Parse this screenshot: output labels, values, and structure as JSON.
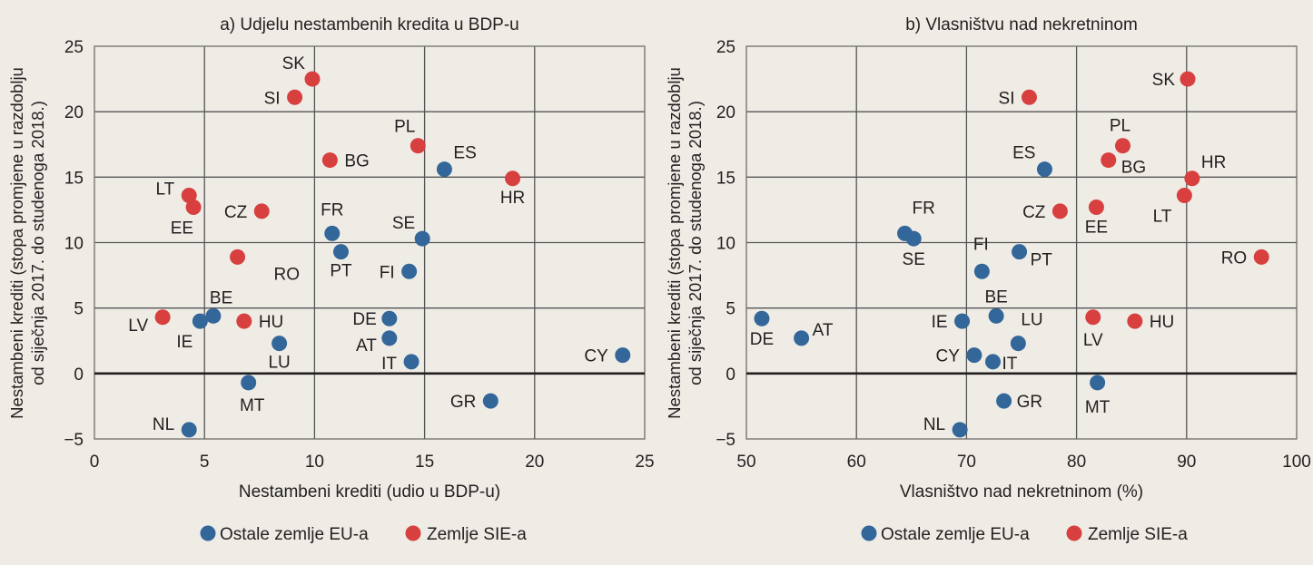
{
  "colors": {
    "background": "#efece6",
    "other_eu": "#336699",
    "cee": "#d7403e"
  },
  "chart_data": [
    {
      "type": "scatter",
      "title": "a) Udjelu nestambenih kredita u BDP-u",
      "xlabel": "Nestambeni krediti (udio u BDP-u)",
      "ylabel_lines": [
        "Nestambeni krediti (stopa promjene u razdoblju",
        "od siječnja 2017. do studenoga 2018.)"
      ],
      "xlim": [
        0,
        25
      ],
      "ylim": [
        -5,
        25
      ],
      "xticks": [
        0,
        5,
        10,
        15,
        20,
        25
      ],
      "yticks": [
        -5,
        0,
        5,
        10,
        15,
        20,
        25
      ],
      "xtick_labels": [
        "0",
        "5",
        "10",
        "15",
        "20",
        "25"
      ],
      "ytick_labels": [
        "−5",
        "0",
        "5",
        "10",
        "15",
        "20",
        "25"
      ],
      "grid": true,
      "legend": {
        "placement": "bottom",
        "entries": [
          {
            "label": "Ostale zemlje EU-a",
            "group": "other_eu"
          },
          {
            "label": "Zemlje SIE-a",
            "group": "cee"
          }
        ]
      },
      "series": [
        {
          "name": "Ostale zemlje EU-a",
          "group": "other_eu",
          "points": [
            {
              "label": "ES",
              "x": 15.9,
              "y": 15.6
            },
            {
              "label": "FR",
              "x": 10.8,
              "y": 10.7
            },
            {
              "label": "SE",
              "x": 14.9,
              "y": 10.3
            },
            {
              "label": "PT",
              "x": 11.2,
              "y": 9.3
            },
            {
              "label": "FI",
              "x": 14.3,
              "y": 7.8
            },
            {
              "label": "BE",
              "x": 5.4,
              "y": 4.4
            },
            {
              "label": "IE",
              "x": 4.8,
              "y": 4.0
            },
            {
              "label": "DE",
              "x": 13.4,
              "y": 4.2
            },
            {
              "label": "AT",
              "x": 13.4,
              "y": 2.7
            },
            {
              "label": "LU",
              "x": 8.4,
              "y": 2.3
            },
            {
              "label": "IT",
              "x": 14.4,
              "y": 0.9
            },
            {
              "label": "CY",
              "x": 24.0,
              "y": 1.4
            },
            {
              "label": "MT",
              "x": 7.0,
              "y": -0.7
            },
            {
              "label": "GR",
              "x": 18.0,
              "y": -2.1
            },
            {
              "label": "NL",
              "x": 4.3,
              "y": -4.3
            }
          ]
        },
        {
          "name": "Zemlje SIE-a",
          "group": "cee",
          "points": [
            {
              "label": "SK",
              "x": 9.9,
              "y": 22.5
            },
            {
              "label": "SI",
              "x": 9.1,
              "y": 21.1
            },
            {
              "label": "PL",
              "x": 14.7,
              "y": 17.4
            },
            {
              "label": "BG",
              "x": 10.7,
              "y": 16.3
            },
            {
              "label": "HR",
              "x": 19.0,
              "y": 14.9
            },
            {
              "label": "LT",
              "x": 4.3,
              "y": 13.6
            },
            {
              "label": "EE",
              "x": 4.5,
              "y": 12.7
            },
            {
              "label": "CZ",
              "x": 7.6,
              "y": 12.4
            },
            {
              "label": "RO",
              "x": 6.5,
              "y": 8.9
            },
            {
              "label": "LV",
              "x": 3.1,
              "y": 4.3
            },
            {
              "label": "HU",
              "x": 6.8,
              "y": 4.0
            }
          ]
        }
      ]
    },
    {
      "type": "scatter",
      "title": "b) Vlasništvu nad nekretninom",
      "xlabel": "Vlasništvo nad nekretninom (%)",
      "ylabel_lines": [
        "Nestambeni krediti (stopa promjene u razdoblju",
        "od siječnja 2017. do studenoga 2018.)"
      ],
      "xlim": [
        50,
        100
      ],
      "ylim": [
        -5,
        25
      ],
      "xticks": [
        50,
        60,
        70,
        80,
        90,
        100
      ],
      "yticks": [
        -5,
        0,
        5,
        10,
        15,
        20,
        25
      ],
      "xtick_labels": [
        "50",
        "60",
        "70",
        "80",
        "90",
        "100"
      ],
      "ytick_labels": [
        "−5",
        "0",
        "5",
        "10",
        "15",
        "20",
        "25"
      ],
      "grid": true,
      "legend": {
        "placement": "bottom",
        "entries": [
          {
            "label": "Ostale zemlje EU-a",
            "group": "other_eu"
          },
          {
            "label": "Zemlje SIE-a",
            "group": "cee"
          }
        ]
      },
      "series": [
        {
          "name": "Ostale zemlje EU-a",
          "group": "other_eu",
          "points": [
            {
              "label": "ES",
              "x": 77.1,
              "y": 15.6
            },
            {
              "label": "FR",
              "x": 64.4,
              "y": 10.7
            },
            {
              "label": "SE",
              "x": 65.2,
              "y": 10.3
            },
            {
              "label": "PT",
              "x": 74.8,
              "y": 9.3
            },
            {
              "label": "FI",
              "x": 71.4,
              "y": 7.8
            },
            {
              "label": "BE",
              "x": 72.7,
              "y": 4.4
            },
            {
              "label": "IE",
              "x": 69.6,
              "y": 4.0
            },
            {
              "label": "DE",
              "x": 51.4,
              "y": 4.2
            },
            {
              "label": "AT",
              "x": 55.0,
              "y": 2.7
            },
            {
              "label": "LU",
              "x": 74.7,
              "y": 2.3
            },
            {
              "label": "IT",
              "x": 72.4,
              "y": 0.9
            },
            {
              "label": "CY",
              "x": 70.7,
              "y": 1.4
            },
            {
              "label": "MT",
              "x": 81.9,
              "y": -0.7
            },
            {
              "label": "GR",
              "x": 73.4,
              "y": -2.1
            },
            {
              "label": "NL",
              "x": 69.4,
              "y": -4.3
            }
          ]
        },
        {
          "name": "Zemlje SIE-a",
          "group": "cee",
          "points": [
            {
              "label": "SK",
              "x": 90.1,
              "y": 22.5
            },
            {
              "label": "SI",
              "x": 75.7,
              "y": 21.1
            },
            {
              "label": "PL",
              "x": 84.2,
              "y": 17.4
            },
            {
              "label": "BG",
              "x": 82.9,
              "y": 16.3
            },
            {
              "label": "HR",
              "x": 90.5,
              "y": 14.9
            },
            {
              "label": "LT",
              "x": 89.8,
              "y": 13.6
            },
            {
              "label": "EE",
              "x": 81.8,
              "y": 12.7
            },
            {
              "label": "CZ",
              "x": 78.5,
              "y": 12.4
            },
            {
              "label": "RO",
              "x": 96.8,
              "y": 8.9
            },
            {
              "label": "LV",
              "x": 81.5,
              "y": 4.3
            },
            {
              "label": "HU",
              "x": 85.3,
              "y": 4.0
            }
          ]
        }
      ]
    }
  ]
}
